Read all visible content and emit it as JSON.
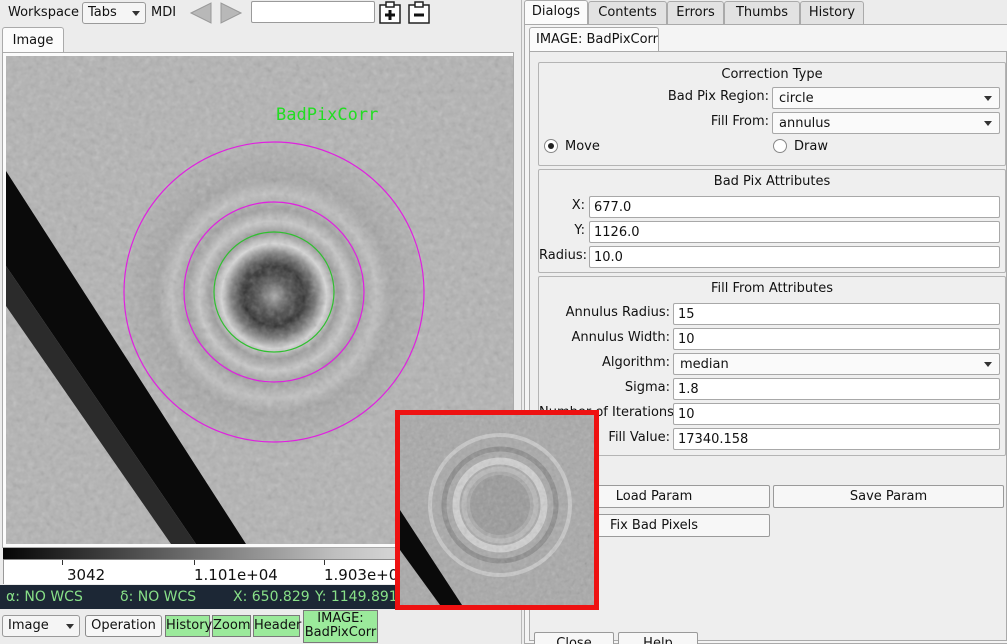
{
  "toolbar": {
    "workspace_label": "Workspace",
    "layout_select": "Tabs",
    "mdi_label": "MDI",
    "path_input_value": ""
  },
  "viewer": {
    "tab": "Image",
    "overlay_label": "BadPixCorr",
    "overlay_label_color": "#22dd22",
    "circle_colors": {
      "outer": "#e020e0",
      "inner": "#30c030"
    },
    "colorbar_values": [
      "3042",
      "1.101e+04",
      "1.903e+0"
    ],
    "wcs": {
      "ra": "α: NO WCS",
      "dec": "δ: NO WCS",
      "x": "X: 650.829",
      "y": "Y: 1149.891"
    }
  },
  "bottom_bar": {
    "mode_select": "Image",
    "operation_button": "Operation",
    "plugins": [
      "History",
      "Zoom",
      "Header"
    ],
    "active_plugin_line1": "IMAGE:",
    "active_plugin_line2": "BadPixCorr",
    "plugin_color": "#9bea9b"
  },
  "right_panel": {
    "tabs": [
      "Dialogs",
      "Contents",
      "Errors",
      "Thumbs",
      "History"
    ],
    "active_tab": "Dialogs",
    "subtab": "IMAGE: BadPixCorr",
    "correction_type": {
      "title": "Correction Type",
      "region_label": "Bad Pix Region:",
      "region_value": "circle",
      "fill_from_label": "Fill From:",
      "fill_from_value": "annulus",
      "mode_move": "Move",
      "mode_draw": "Draw"
    },
    "bad_pix_attributes": {
      "title": "Bad Pix Attributes",
      "x_label": "X:",
      "x_value": "677.0",
      "y_label": "Y:",
      "y_value": "1126.0",
      "radius_label": "Radius:",
      "radius_value": "10.0"
    },
    "fill_from_attributes": {
      "title": "Fill From Attributes",
      "annulus_radius_label": "Annulus Radius:",
      "annulus_radius_value": "15",
      "annulus_width_label": "Annulus Width:",
      "annulus_width_value": "10",
      "algorithm_label": "Algorithm:",
      "algorithm_value": "median",
      "sigma_label": "Sigma:",
      "sigma_value": "1.8",
      "iterations_label": "Number of Iterations:",
      "iterations_value": "10",
      "fill_value_label": "Fill Value:",
      "fill_value_value": "17340.158"
    },
    "buttons": {
      "load_param": "Load Param",
      "save_param": "Save Param",
      "fix_bad_pixels": "Fix Bad Pixels",
      "close": "Close",
      "help": "Help"
    }
  },
  "zoom_popup": {
    "border_color": "#ee1111"
  }
}
